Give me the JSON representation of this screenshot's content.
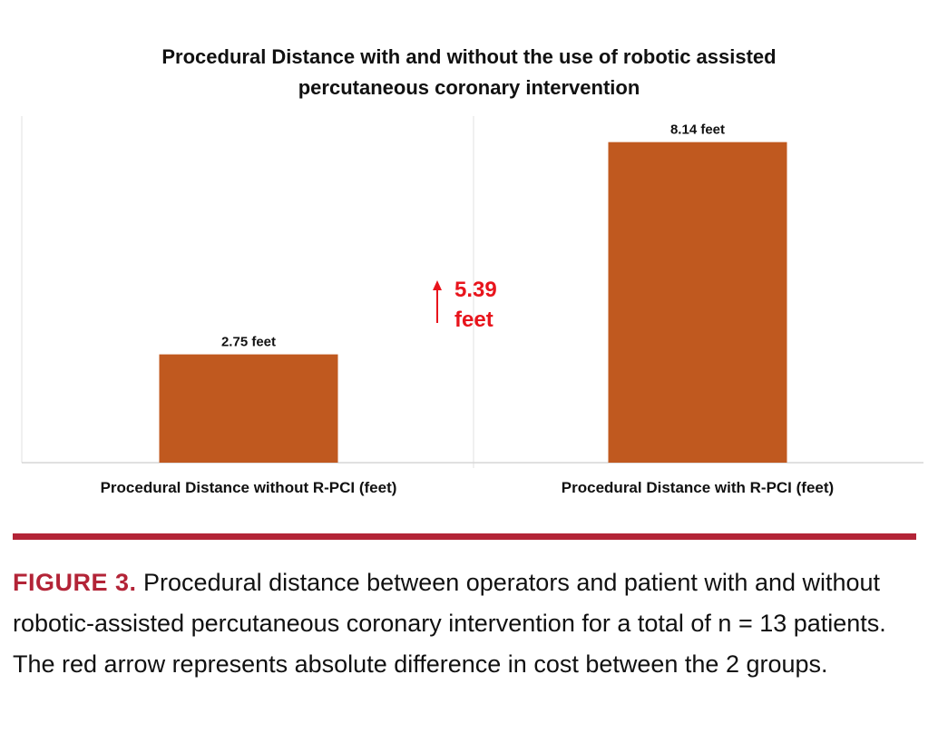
{
  "chart_data": {
    "type": "bar",
    "title_lines": [
      "Procedural Distance with and without the use of robotic assisted",
      "percutaneous coronary intervention"
    ],
    "categories": [
      "Procedural Distance without R-PCI (feet)",
      "Procedural Distance with R-PCI (feet)"
    ],
    "values": [
      2.75,
      8.14
    ],
    "data_labels": [
      "2.75 feet",
      "8.14 feet"
    ],
    "ylim": [
      0,
      8.8
    ],
    "grid": "none",
    "bar_color": "#c0591f",
    "annotation": {
      "value_line": "5.39",
      "unit_line": "feet",
      "color": "#e8141c"
    }
  },
  "caption": {
    "label": "FIGURE 3.",
    "text": " Procedural distance between operators and patient with and without robotic-assisted percutaneous coronary intervention for a total of n = 13 patients. The red arrow represents absolute difference in cost between the 2 groups.",
    "accent": "#b32437"
  }
}
